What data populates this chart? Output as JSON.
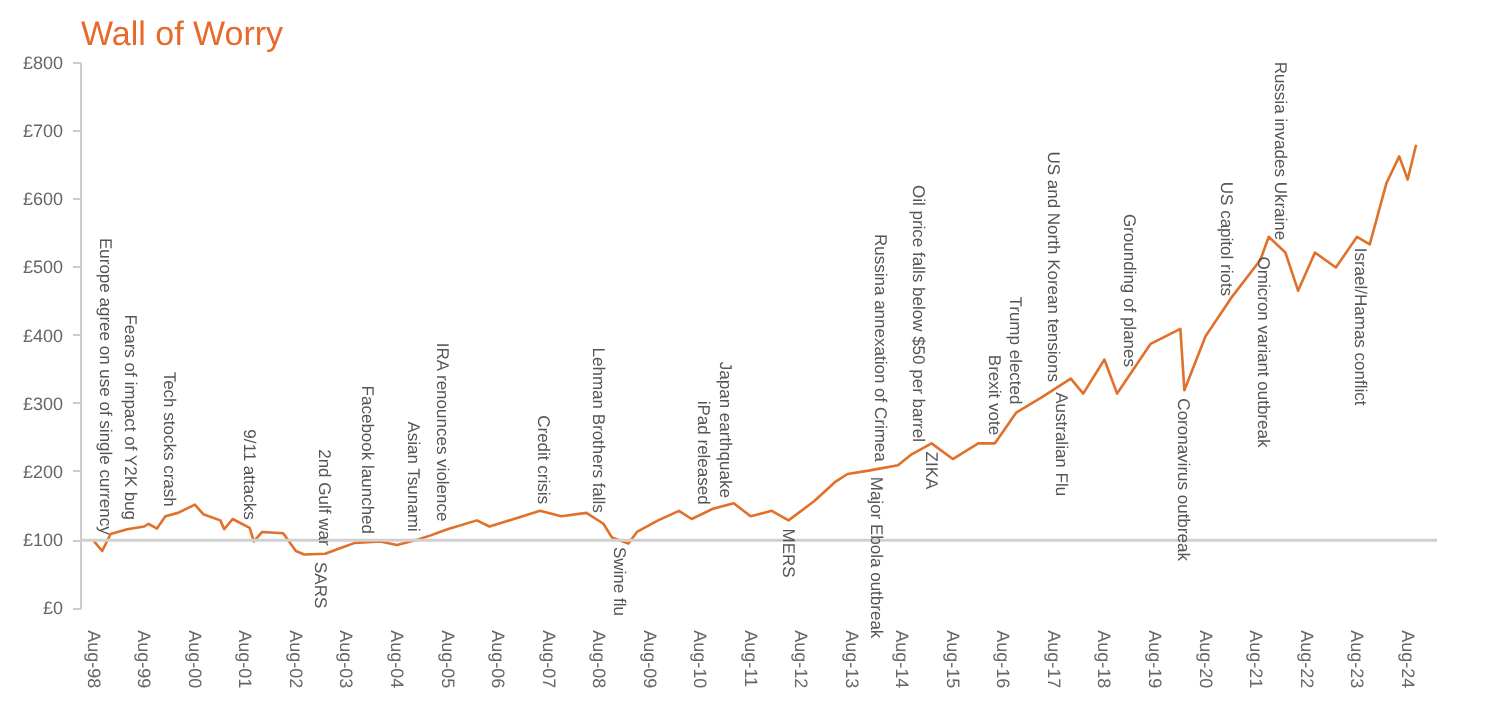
{
  "chart_data": {
    "type": "line",
    "title": "Wall of Worry",
    "x": [
      "1998-08",
      "1998-10",
      "1998-12",
      "1999-04",
      "1999-08",
      "1999-09",
      "1999-11",
      "2000-01",
      "2000-04",
      "2000-08",
      "2000-10",
      "2001-02",
      "2001-03",
      "2001-05",
      "2001-09",
      "2001-10",
      "2001-12",
      "2002-05",
      "2002-08",
      "2002-10",
      "2003-03",
      "2003-06",
      "2003-10",
      "2004-04",
      "2004-08",
      "2005-01",
      "2005-04",
      "2005-08",
      "2006-03",
      "2006-06",
      "2007-06",
      "2007-11",
      "2008-05",
      "2008-09",
      "2008-11",
      "2009-03",
      "2009-05",
      "2009-10",
      "2010-03",
      "2010-06",
      "2010-11",
      "2011-04",
      "2011-08",
      "2012-01",
      "2012-05",
      "2012-11",
      "2013-04",
      "2013-07",
      "2013-12",
      "2014-07",
      "2014-10",
      "2015-03",
      "2015-08",
      "2016-02",
      "2016-06",
      "2016-11",
      "2017-05",
      "2017-12",
      "2018-03",
      "2018-08",
      "2018-11",
      "2019-07",
      "2020-02",
      "2020-03",
      "2020-08",
      "2021-02",
      "2021-09",
      "2021-11",
      "2022-03",
      "2022-06",
      "2022-10",
      "2023-03",
      "2023-08",
      "2023-11",
      "2024-03",
      "2024-06",
      "2024-08",
      "2024-10"
    ],
    "series": [
      {
        "color": "#e0702a",
        "values": [
          99,
          84,
          109,
          116,
          120,
          124,
          117,
          135,
          140,
          152,
          138,
          129,
          116,
          131,
          118,
          98,
          112,
          110,
          84,
          79,
          80,
          87,
          96,
          98,
          93,
          101,
          107,
          116,
          129,
          120,
          143,
          135,
          140,
          124,
          104,
          95,
          112,
          129,
          143,
          131,
          146,
          154,
          135,
          143,
          129,
          157,
          185,
          197,
          202,
          210,
          225,
          242,
          219,
          242,
          242,
          287,
          309,
          337,
          315,
          365,
          315,
          388,
          410,
          320,
          399,
          455,
          511,
          545,
          522,
          466,
          522,
          500,
          545,
          534,
          624,
          663,
          629,
          680
        ]
      }
    ],
    "xlim": [
      "1998-05",
      "2025-03"
    ],
    "xticks": [
      {
        "value": "1998-08",
        "label": "Aug-98"
      },
      {
        "value": "1999-08",
        "label": "Aug-99"
      },
      {
        "value": "2000-08",
        "label": "Aug-00"
      },
      {
        "value": "2001-08",
        "label": "Aug-01"
      },
      {
        "value": "2002-08",
        "label": "Aug-02"
      },
      {
        "value": "2003-08",
        "label": "Aug-03"
      },
      {
        "value": "2004-08",
        "label": "Aug-04"
      },
      {
        "value": "2005-08",
        "label": "Aug-05"
      },
      {
        "value": "2006-08",
        "label": "Aug-06"
      },
      {
        "value": "2007-08",
        "label": "Aug-07"
      },
      {
        "value": "2008-08",
        "label": "Aug-08"
      },
      {
        "value": "2009-08",
        "label": "Aug-09"
      },
      {
        "value": "2010-08",
        "label": "Aug-10"
      },
      {
        "value": "2011-08",
        "label": "Aug-11"
      },
      {
        "value": "2012-08",
        "label": "Aug-12"
      },
      {
        "value": "2013-08",
        "label": "Aug-13"
      },
      {
        "value": "2014-08",
        "label": "Aug-14"
      },
      {
        "value": "2015-08",
        "label": "Aug-15"
      },
      {
        "value": "2016-08",
        "label": "Aug-16"
      },
      {
        "value": "2017-08",
        "label": "Aug-17"
      },
      {
        "value": "2018-08",
        "label": "Aug-18"
      },
      {
        "value": "2019-08",
        "label": "Aug-19"
      },
      {
        "value": "2020-08",
        "label": "Aug-20"
      },
      {
        "value": "2021-08",
        "label": "Aug-21"
      },
      {
        "value": "2022-08",
        "label": "Aug-22"
      },
      {
        "value": "2023-08",
        "label": "Aug-23"
      },
      {
        "value": "2024-08",
        "label": "Aug-24"
      }
    ],
    "ylim": [
      0,
      800
    ],
    "yticks": [
      {
        "value": 0,
        "label": "£0"
      },
      {
        "value": 100,
        "label": "£100"
      },
      {
        "value": 200,
        "label": "£200"
      },
      {
        "value": 300,
        "label": "£300"
      },
      {
        "value": 400,
        "label": "£400"
      },
      {
        "value": 500,
        "label": "£500"
      },
      {
        "value": 600,
        "label": "£600"
      },
      {
        "value": 700,
        "label": "£700"
      },
      {
        "value": 800,
        "label": "£800"
      }
    ],
    "grid": false,
    "ref_lines": [
      {
        "axis": "y",
        "value": 100,
        "color": "#d0d0d0"
      }
    ],
    "annotations": [
      {
        "text": "Europe agree on use of single currency",
        "x": "1998-11",
        "y": 108
      },
      {
        "text": "Fears of impact of Y2K bug",
        "x": "1999-05",
        "y": 129
      },
      {
        "text": "Tech stocks crash",
        "x": "2000-02",
        "y": 149
      },
      {
        "text": "9/11 attacks",
        "x": "2001-09",
        "y": 130
      },
      {
        "text": "2nd Gulf war",
        "x": "2003-03",
        "y": 92
      },
      {
        "text": "SARS",
        "x": "2003-02",
        "y": 68
      },
      {
        "text": "Facebook launched",
        "x": "2004-01",
        "y": 109
      },
      {
        "text": "Asian Tsunami",
        "x": "2004-12",
        "y": 112
      },
      {
        "text": "IRA renounces violence",
        "x": "2005-07",
        "y": 126
      },
      {
        "text": "Credit crisis",
        "x": "2007-07",
        "y": 153
      },
      {
        "text": "Lehman Brothers falls",
        "x": "2008-08",
        "y": 140
      },
      {
        "text": "Swine flu",
        "x": "2009-01",
        "y": 90
      },
      {
        "text": "iPad released",
        "x": "2010-09",
        "y": 152
      },
      {
        "text": "Japan earthquake",
        "x": "2011-02",
        "y": 162
      },
      {
        "text": "MERS",
        "x": "2012-05",
        "y": 117
      },
      {
        "text": "Major Ebola outbreak",
        "x": "2014-02",
        "y": 193
      },
      {
        "text": "Russina annexation of Crimea",
        "x": "2014-03",
        "y": 215
      },
      {
        "text": "Oil price falls below $50 per barrel",
        "x": "2014-12",
        "y": 244
      },
      {
        "text": "ZIKA",
        "x": "2015-03",
        "y": 230
      },
      {
        "text": "Brexit vote",
        "x": "2016-06",
        "y": 254
      },
      {
        "text": "Trump elected",
        "x": "2016-11",
        "y": 299
      },
      {
        "text": "US and North Korean tensions",
        "x": "2017-08",
        "y": 332
      },
      {
        "text": "Australian Flu",
        "x": "2017-10",
        "y": 317
      },
      {
        "text": "Grounding of planes",
        "x": "2019-02",
        "y": 354
      },
      {
        "text": "Coronavirus outbreak",
        "x": "2020-03",
        "y": 308
      },
      {
        "text": "US capitol riots",
        "x": "2021-01",
        "y": 458
      },
      {
        "text": "Omicron variant outbreak",
        "x": "2021-10",
        "y": 516
      },
      {
        "text": "Russia invades Ukraine",
        "x": "2022-02",
        "y": 540
      },
      {
        "text": "Israel/Hamas conflict",
        "x": "2023-09",
        "y": 529
      }
    ]
  }
}
